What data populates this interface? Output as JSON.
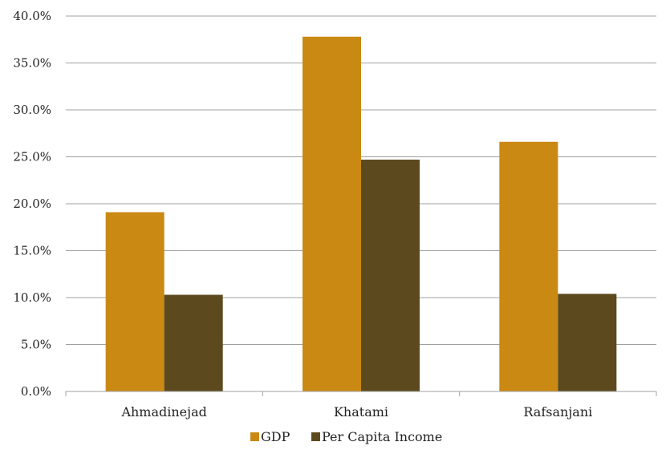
{
  "chart_data": {
    "type": "bar",
    "categories": [
      "Ahmadinejad",
      "Khatami",
      "Rafsanjani"
    ],
    "series": [
      {
        "name": "GDP",
        "values": [
          19.1,
          37.8,
          26.6
        ],
        "color": "#C98912"
      },
      {
        "name": "Per Capita Income",
        "values": [
          10.3,
          24.7,
          10.4
        ],
        "color": "#5C4A1E"
      }
    ],
    "ylim": [
      0,
      40
    ],
    "yticks": [
      "0.0%",
      "5.0%",
      "10.0%",
      "15.0%",
      "20.0%",
      "25.0%",
      "30.0%",
      "35.0%",
      "40.0%"
    ],
    "grid": true,
    "legend_position": "bottom",
    "title": "",
    "xlabel": "",
    "ylabel": "",
    "gridline_color": "#a0a0a0"
  }
}
